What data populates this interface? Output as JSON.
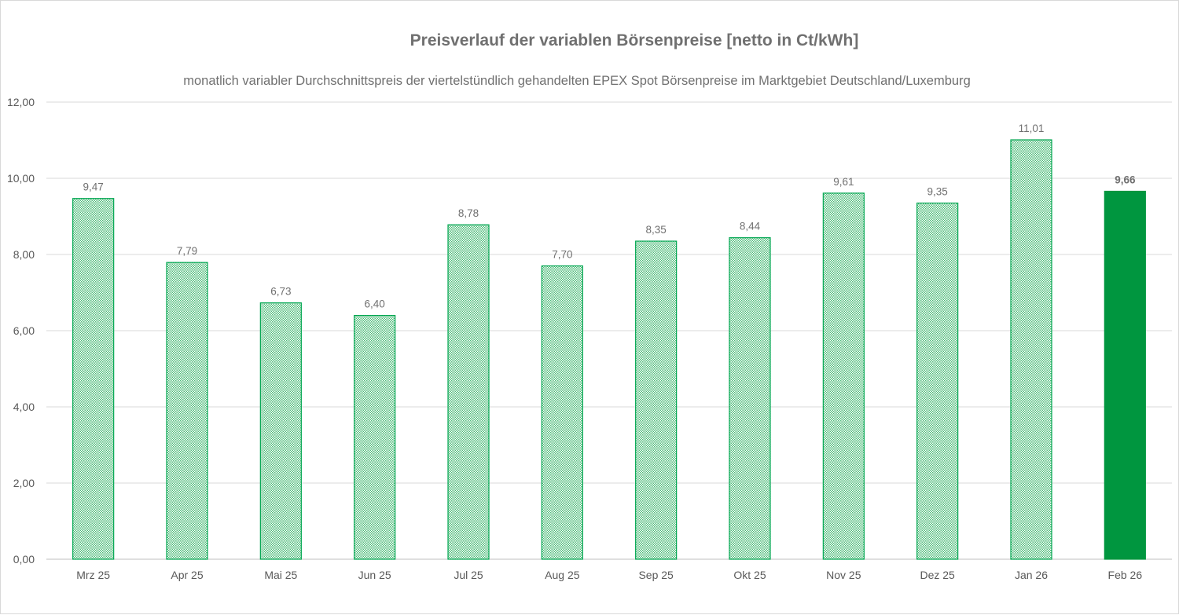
{
  "chart_data": {
    "type": "bar",
    "title": "Preisverlauf der variablen Börsenpreise [netto in Ct/kWh]",
    "subtitle": "monatlich variabler Durchschnittspreis der viertelstündlich gehandelten EPEX Spot Börsenpreise im Marktgebiet Deutschland/Luxemburg",
    "xlabel": "",
    "ylabel": "",
    "ylim": [
      0,
      12
    ],
    "yticks": [
      "0,00",
      "2,00",
      "4,00",
      "6,00",
      "8,00",
      "10,00",
      "12,00"
    ],
    "grid": true,
    "categories": [
      "Mrz 25",
      "Apr 25",
      "Mai 25",
      "Jun 25",
      "Jul 25",
      "Aug 25",
      "Sep 25",
      "Okt 25",
      "Nov 25",
      "Dez 25",
      "Jan 26",
      "Feb 26"
    ],
    "values": [
      9.47,
      7.79,
      6.73,
      6.4,
      8.78,
      7.7,
      8.35,
      8.44,
      9.61,
      9.35,
      11.01,
      9.66
    ],
    "labels": [
      "9,47",
      "7,79",
      "6,73",
      "6,40",
      "8,78",
      "7,70",
      "8,35",
      "8,44",
      "9,61",
      "9,35",
      "11,01",
      "9,66"
    ],
    "highlight_index": 11,
    "colors": {
      "bar_pattern": "#8fd4a8",
      "bar_border": "#00a650",
      "highlight": "#00963f",
      "grid": "#d9d9d9"
    }
  }
}
